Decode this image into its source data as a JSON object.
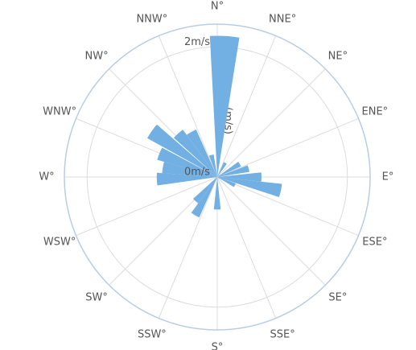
{
  "chart_data": {
    "type": "polar-bar",
    "axis_title": "(m/s)",
    "compass": [
      "N°",
      "NNE°",
      "NE°",
      "ENE°",
      "E°",
      "ESE°",
      "SE°",
      "SSE°",
      "S°",
      "SSW°",
      "SW°",
      "WSW°",
      "W°",
      "WNW°",
      "NW°",
      "NNW°"
    ],
    "directions": [
      3,
      30,
      60,
      75,
      90,
      102,
      115,
      180,
      210,
      222,
      268,
      280,
      292,
      305,
      318,
      330,
      345
    ],
    "values": [
      2.17,
      0.25,
      0.4,
      0.5,
      0.68,
      1.0,
      0.3,
      0.5,
      0.68,
      0.5,
      0.93,
      0.85,
      0.96,
      1.23,
      0.9,
      0.8,
      0.35
    ],
    "color": "#72b0e3",
    "rlim": [
      0,
      2.35
    ],
    "rticks": [
      {
        "value": 0,
        "label": "0m/s"
      },
      {
        "value": 2,
        "label": "2m/s"
      }
    ],
    "grid": true
  }
}
